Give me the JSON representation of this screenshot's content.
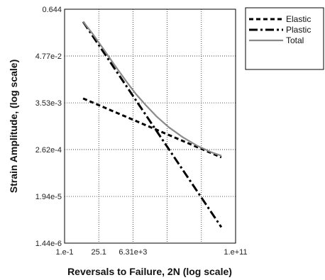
{
  "chart_data": {
    "type": "line",
    "xlabel": "Reversals to Failure, 2N (log scale)",
    "ylabel": "Strain Amplitude, (log scale)",
    "x_scale": "log",
    "y_scale": "log",
    "xlim": [
      0.1,
      100000000000.0
    ],
    "ylim": [
      1.44e-06,
      0.644
    ],
    "x_ticks": [
      {
        "value": 0.1,
        "label": "1.e-1"
      },
      {
        "value": 25.1,
        "label": "25.1"
      },
      {
        "value": 6310,
        "label": "6.31e+3"
      },
      {
        "value": 1585000.0,
        "label": ""
      },
      {
        "value": 398000000.0,
        "label": ""
      },
      {
        "value": 100000000000.0,
        "label": "1.e+11"
      }
    ],
    "y_ticks": [
      {
        "value": 0.644,
        "label": "0.644"
      },
      {
        "value": 0.0477,
        "label": "4.77e-2"
      },
      {
        "value": 0.00353,
        "label": "3.53e-3"
      },
      {
        "value": 0.000262,
        "label": "2.62e-4"
      },
      {
        "value": 1.94e-05,
        "label": "1.94e-5"
      },
      {
        "value": 1.44e-06,
        "label": "1.44e-6"
      }
    ],
    "grid": true,
    "legend_position": "top-right-outside",
    "series": [
      {
        "name": "Elastic",
        "style": "dashed",
        "color": "#000000",
        "x": [
          2,
          10000000000.0
        ],
        "y": [
          0.0045,
          0.00017
        ]
      },
      {
        "name": "Plastic",
        "style": "dash-dot",
        "color": "#000000",
        "x": [
          2,
          10000000000.0
        ],
        "y": [
          0.32,
          3.5e-06
        ]
      },
      {
        "name": "Total",
        "style": "solid",
        "color": "#8a8a8a",
        "x": [
          2,
          10,
          50,
          300,
          2000,
          10000,
          50000,
          300000,
          2000000,
          20000000,
          200000000,
          2000000000,
          10000000000
        ],
        "y": [
          0.324,
          0.158,
          0.0726,
          0.0298,
          0.012,
          0.0058,
          0.00309,
          0.00163,
          0.000914,
          0.000519,
          0.000324,
          0.000226,
          0.000186
        ]
      }
    ]
  }
}
